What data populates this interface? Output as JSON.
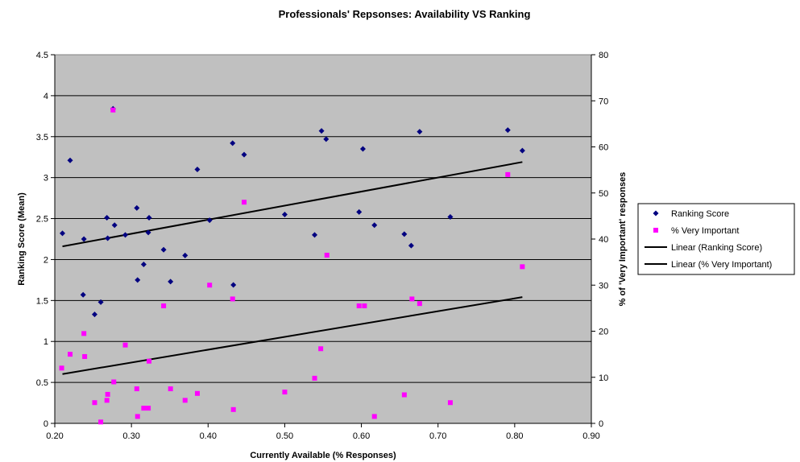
{
  "chart_data": {
    "type": "scatter",
    "title": "Professionals' Repsonses: Availability VS Ranking",
    "xlabel": "Currently Available (% Responses)",
    "ylabel": "Ranking Score (Mean)",
    "y2label": "% of 'Very Important' responses",
    "xlim": [
      0.2,
      0.9
    ],
    "ylim": [
      0,
      4.5
    ],
    "y2lim": [
      0,
      80
    ],
    "x_ticks": [
      "0.20",
      "0.30",
      "0.40",
      "0.50",
      "0.60",
      "0.70",
      "0.80",
      "0.90"
    ],
    "y_ticks": [
      "0",
      "0.5",
      "1",
      "1.5",
      "2",
      "2.5",
      "3",
      "3.5",
      "4",
      "4.5"
    ],
    "y2_ticks": [
      "0",
      "10",
      "20",
      "30",
      "40",
      "50",
      "60",
      "70",
      "80"
    ],
    "grid": true,
    "plot_background": "#c0c0c0",
    "legend_position": "right",
    "series": [
      {
        "name": "Ranking Score",
        "axis": "left",
        "marker": "diamond",
        "color": "#000080",
        "points": [
          [
            0.21,
            2.32
          ],
          [
            0.22,
            3.21
          ],
          [
            0.237,
            1.57
          ],
          [
            0.238,
            2.25
          ],
          [
            0.252,
            1.33
          ],
          [
            0.26,
            1.48
          ],
          [
            0.268,
            2.51
          ],
          [
            0.269,
            2.26
          ],
          [
            0.276,
            3.84
          ],
          [
            0.278,
            2.42
          ],
          [
            0.292,
            2.3
          ],
          [
            0.307,
            2.63
          ],
          [
            0.308,
            1.75
          ],
          [
            0.316,
            1.94
          ],
          [
            0.322,
            2.33
          ],
          [
            0.323,
            2.51
          ],
          [
            0.342,
            2.12
          ],
          [
            0.351,
            1.73
          ],
          [
            0.37,
            2.05
          ],
          [
            0.386,
            3.1
          ],
          [
            0.402,
            2.48
          ],
          [
            0.432,
            3.42
          ],
          [
            0.433,
            1.69
          ],
          [
            0.447,
            3.28
          ],
          [
            0.5,
            2.55
          ],
          [
            0.539,
            2.3
          ],
          [
            0.548,
            3.57
          ],
          [
            0.554,
            3.47
          ],
          [
            0.597,
            2.58
          ],
          [
            0.602,
            3.35
          ],
          [
            0.617,
            2.42
          ],
          [
            0.656,
            2.31
          ],
          [
            0.665,
            2.17
          ],
          [
            0.676,
            3.56
          ],
          [
            0.716,
            2.52
          ],
          [
            0.791,
            3.58
          ],
          [
            0.81,
            3.33
          ]
        ]
      },
      {
        "name": "% Very Important",
        "axis": "right",
        "marker": "square",
        "color": "#ff00ff",
        "points": [
          [
            0.209,
            12
          ],
          [
            0.22,
            15
          ],
          [
            0.238,
            19.5
          ],
          [
            0.239,
            14.5
          ],
          [
            0.252,
            4.5
          ],
          [
            0.26,
            0.3
          ],
          [
            0.268,
            5
          ],
          [
            0.269,
            6.3
          ],
          [
            0.276,
            68
          ],
          [
            0.277,
            9
          ],
          [
            0.292,
            17
          ],
          [
            0.307,
            7.5
          ],
          [
            0.308,
            1.5
          ],
          [
            0.316,
            3.3
          ],
          [
            0.322,
            3.3
          ],
          [
            0.323,
            13.5
          ],
          [
            0.342,
            25.5
          ],
          [
            0.351,
            7.5
          ],
          [
            0.37,
            5
          ],
          [
            0.386,
            6.5
          ],
          [
            0.402,
            30
          ],
          [
            0.432,
            27
          ],
          [
            0.433,
            3
          ],
          [
            0.447,
            48
          ],
          [
            0.5,
            6.8
          ],
          [
            0.539,
            9.8
          ],
          [
            0.547,
            16.2
          ],
          [
            0.555,
            36.5
          ],
          [
            0.597,
            25.5
          ],
          [
            0.604,
            25.5
          ],
          [
            0.617,
            1.5
          ],
          [
            0.656,
            6.2
          ],
          [
            0.666,
            27
          ],
          [
            0.676,
            26
          ],
          [
            0.716,
            4.5
          ],
          [
            0.791,
            54
          ],
          [
            0.81,
            34
          ]
        ]
      }
    ],
    "trendlines": [
      {
        "name": "Linear (Ranking Score)",
        "axis": "left",
        "color": "#000000",
        "x": [
          0.21,
          0.81
        ],
        "y": [
          2.16,
          3.19
        ]
      },
      {
        "name": "Linear (% Very Important)",
        "axis": "right",
        "color": "#000000",
        "x": [
          0.21,
          0.81
        ],
        "y": [
          10.7,
          27.4
        ]
      }
    ]
  }
}
